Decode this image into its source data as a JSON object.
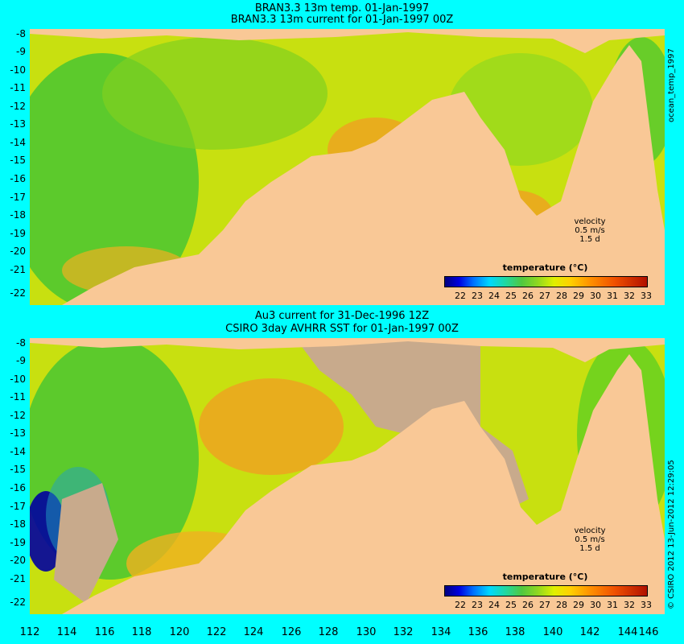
{
  "panels": [
    {
      "title_line1": "BRAN3.3 13m temp. 01-Jan-1997",
      "title_line2": "BRAN3.3 13m current for 01-Jan-1997 00Z",
      "velocity_title": "velocity",
      "velocity_scale": "0.5 m/s",
      "velocity_time": "1.5 d",
      "colorbar_title": "temperature (°C)",
      "side_label": "ocean_temp_1997"
    },
    {
      "title_line1": "Au3 current for 31-Dec-1996 12Z",
      "title_line2": "CSIRO 3day AVHRR SST for 01-Jan-1997 00Z",
      "velocity_title": "velocity",
      "velocity_scale": "0.5 m/s",
      "velocity_time": "1.5 d",
      "colorbar_title": "temperature (°C)",
      "side_label": "© CSIRO 2012  13-Jun-2012 12:29:05"
    }
  ],
  "y_ticks": [
    "-8",
    "-9",
    "-10",
    "-11",
    "-12",
    "-13",
    "-14",
    "-15",
    "-16",
    "-17",
    "-18",
    "-19",
    "-20",
    "-21",
    "-22"
  ],
  "x_ticks": [
    "112",
    "114",
    "116",
    "118",
    "120",
    "122",
    "124",
    "126",
    "128",
    "130",
    "132",
    "134",
    "136",
    "138",
    "140",
    "142",
    "144",
    "146"
  ],
  "colorbar_ticks": [
    "22",
    "23",
    "24",
    "25",
    "26",
    "27",
    "28",
    "29",
    "30",
    "31",
    "32",
    "33"
  ],
  "colors": {
    "background": "#00ffff",
    "land": "#f9c896",
    "cloud_gap": "#c8aa8c",
    "warm_sea": "#f0a020",
    "cool_sea": "#50c830",
    "mid_sea": "#c8e010",
    "cold_spot": "#0000a0"
  }
}
